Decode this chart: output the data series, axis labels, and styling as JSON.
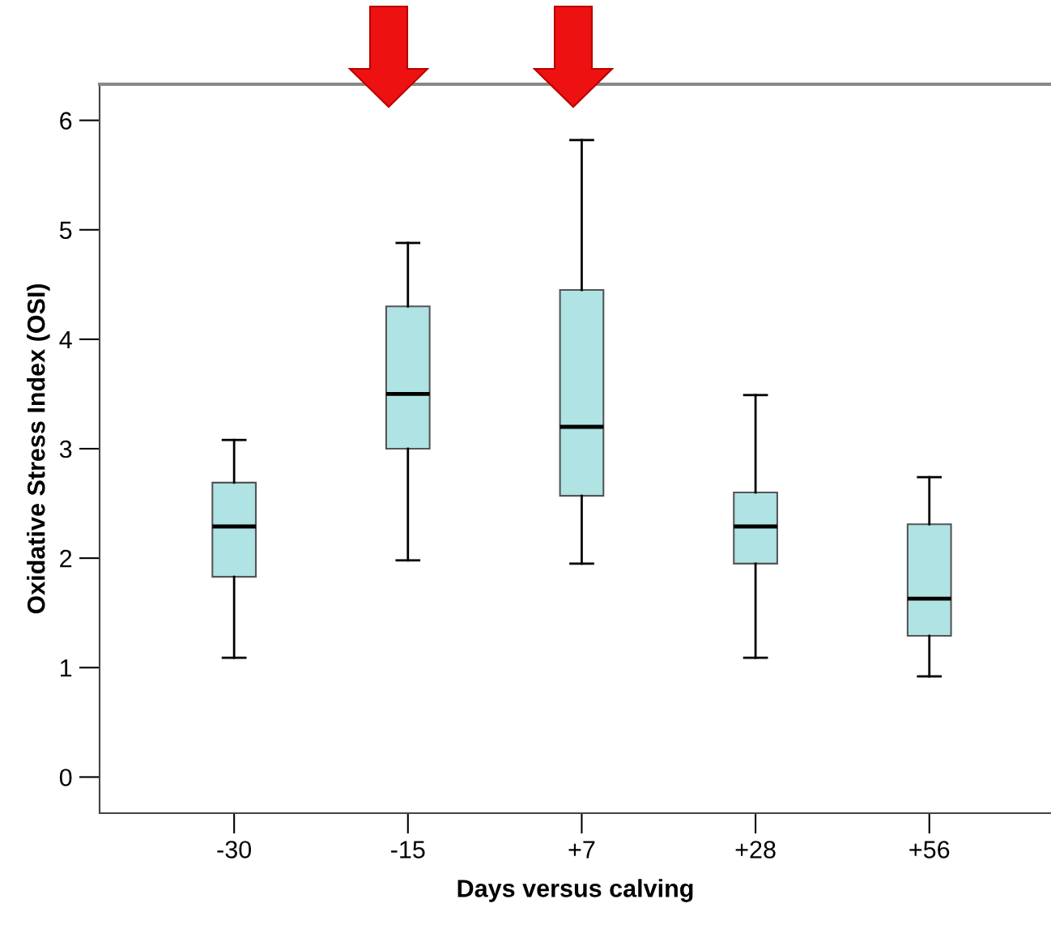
{
  "chart_data": {
    "type": "box",
    "xlabel": "Days versus calving",
    "ylabel": "Oxidative Stress Index (OSI)",
    "categories": [
      "-30",
      "-15",
      "+7",
      "+28",
      "+56"
    ],
    "color": "#b0e3e3",
    "boxes": [
      {
        "low": 1.09,
        "q1": 1.83,
        "median": 2.29,
        "q3": 2.69,
        "high": 3.08
      },
      {
        "low": 1.98,
        "q1": 3.0,
        "median": 3.5,
        "q3": 4.3,
        "high": 4.88
      },
      {
        "low": 1.95,
        "q1": 2.57,
        "median": 3.2,
        "q3": 4.45,
        "high": 5.82
      },
      {
        "low": 1.09,
        "q1": 1.95,
        "median": 2.29,
        "q3": 2.6,
        "high": 3.49
      },
      {
        "low": 0.92,
        "q1": 1.29,
        "median": 1.63,
        "q3": 2.31,
        "high": 2.74
      }
    ],
    "ylim": [
      -0.33,
      6.33
    ],
    "yticks": [
      0,
      1,
      2,
      3,
      4,
      5,
      6
    ],
    "grid": false
  }
}
